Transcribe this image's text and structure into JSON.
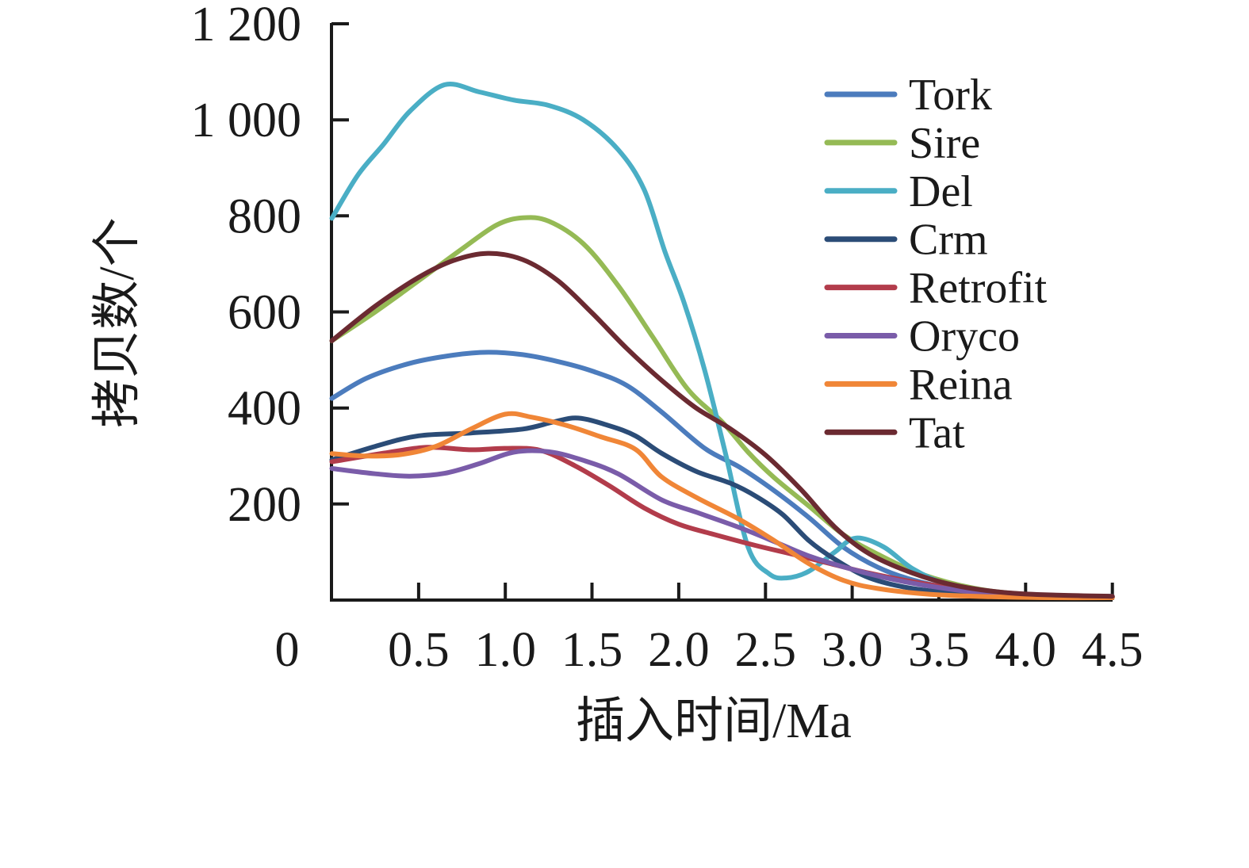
{
  "chart_data": {
    "type": "line",
    "title": "",
    "xlabel": "插入时间/Ma",
    "ylabel": "拷贝数/个",
    "xlim": [
      0,
      4.5
    ],
    "ylim": [
      0,
      1200
    ],
    "grid": false,
    "legend_position": "upper right",
    "x_ticks": [
      0,
      0.5,
      1.0,
      1.5,
      2.0,
      2.5,
      3.0,
      3.5,
      4.0,
      4.5
    ],
    "x_tick_labels": [
      "0",
      "0.5",
      "1.0",
      "1.5",
      "2.0",
      "2.5",
      "3.0",
      "3.5",
      "4.0",
      "4.5"
    ],
    "y_ticks": [
      200,
      400,
      600,
      800,
      1000,
      1200
    ],
    "y_tick_labels": [
      "200",
      "400",
      "600",
      "800",
      "1 000",
      "1 200"
    ],
    "series": [
      {
        "name": "Tork",
        "color": "#4C7CBD",
        "x": [
          0,
          0.2,
          0.45,
          0.7,
          0.9,
          1.1,
          1.3,
          1.5,
          1.7,
          1.9,
          2.15,
          2.35,
          2.55,
          2.75,
          2.95,
          3.15,
          3.35,
          3.6,
          3.9,
          4.2,
          4.5
        ],
        "y": [
          420,
          462,
          493,
          510,
          516,
          511,
          497,
          477,
          447,
          392,
          316,
          277,
          228,
          172,
          110,
          68,
          42,
          23,
          13,
          9,
          8
        ]
      },
      {
        "name": "Sire",
        "color": "#95BA55",
        "x": [
          0,
          0.25,
          0.5,
          0.75,
          0.95,
          1.1,
          1.25,
          1.45,
          1.65,
          1.85,
          2.05,
          2.25,
          2.4,
          2.55,
          2.75,
          2.95,
          3.15,
          3.4,
          3.7,
          4.0,
          4.5
        ],
        "y": [
          540,
          600,
          665,
          731,
          781,
          796,
          789,
          742,
          655,
          548,
          440,
          371,
          308,
          255,
          196,
          136,
          95,
          54,
          25,
          12,
          6
        ]
      },
      {
        "name": "Del",
        "color": "#4AAEC5",
        "x": [
          0,
          0.15,
          0.3,
          0.45,
          0.65,
          0.85,
          1.05,
          1.25,
          1.45,
          1.65,
          1.8,
          1.92,
          2.03,
          2.15,
          2.27,
          2.4,
          2.52,
          2.62,
          2.75,
          2.9,
          3.02,
          3.18,
          3.35,
          3.55,
          3.8,
          4.1,
          4.5
        ],
        "y": [
          795,
          885,
          950,
          1018,
          1073,
          1058,
          1041,
          1030,
          1000,
          938,
          855,
          726,
          620,
          478,
          305,
          110,
          55,
          46,
          60,
          100,
          129,
          111,
          65,
          32,
          14,
          7,
          5
        ]
      },
      {
        "name": "Crm",
        "color": "#2B4C77",
        "x": [
          0,
          0.25,
          0.5,
          0.8,
          1.1,
          1.28,
          1.42,
          1.6,
          1.75,
          1.9,
          2.1,
          2.3,
          2.45,
          2.6,
          2.75,
          2.9,
          3.1,
          3.35,
          3.65,
          4.0,
          4.5
        ],
        "y": [
          292,
          320,
          342,
          348,
          356,
          371,
          379,
          363,
          342,
          306,
          268,
          243,
          215,
          178,
          124,
          85,
          46,
          24,
          13,
          8,
          6
        ]
      },
      {
        "name": "Retrofit",
        "color": "#B23C4B",
        "x": [
          0,
          0.3,
          0.55,
          0.8,
          1.0,
          1.2,
          1.4,
          1.6,
          1.8,
          2.0,
          2.2,
          2.45,
          2.65,
          2.85,
          3.1,
          3.4,
          3.7,
          4.0,
          4.5
        ],
        "y": [
          288,
          306,
          318,
          313,
          316,
          312,
          280,
          238,
          192,
          158,
          137,
          113,
          96,
          78,
          56,
          35,
          20,
          11,
          7
        ]
      },
      {
        "name": "Oryco",
        "color": "#7A5CA9",
        "x": [
          0,
          0.25,
          0.45,
          0.65,
          0.85,
          1.05,
          1.25,
          1.45,
          1.65,
          1.9,
          2.1,
          2.35,
          2.55,
          2.75,
          3.0,
          3.25,
          3.5,
          3.8,
          4.15,
          4.5
        ],
        "y": [
          274,
          263,
          258,
          264,
          284,
          308,
          309,
          291,
          263,
          209,
          183,
          151,
          122,
          92,
          64,
          42,
          26,
          13,
          8,
          6
        ]
      },
      {
        "name": "Reina",
        "color": "#F08637",
        "x": [
          0,
          0.2,
          0.4,
          0.6,
          0.8,
          1.0,
          1.15,
          1.35,
          1.55,
          1.75,
          1.9,
          2.1,
          2.35,
          2.55,
          2.75,
          2.95,
          3.15,
          3.45,
          3.8,
          4.15,
          4.5
        ],
        "y": [
          305,
          300,
          303,
          320,
          356,
          387,
          381,
          364,
          340,
          314,
          257,
          214,
          168,
          124,
          76,
          41,
          24,
          12,
          7,
          5,
          5
        ]
      },
      {
        "name": "Tat",
        "color": "#6B2A31",
        "x": [
          0,
          0.25,
          0.5,
          0.7,
          0.9,
          1.1,
          1.3,
          1.5,
          1.7,
          1.9,
          2.1,
          2.3,
          2.5,
          2.7,
          2.9,
          3.1,
          3.35,
          3.6,
          3.9,
          4.2,
          4.5
        ],
        "y": [
          540,
          612,
          672,
          707,
          722,
          709,
          666,
          598,
          524,
          458,
          400,
          356,
          302,
          232,
          152,
          96,
          56,
          30,
          15,
          10,
          8
        ]
      }
    ]
  }
}
